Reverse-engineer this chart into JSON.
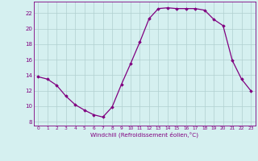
{
  "x": [
    0,
    1,
    2,
    3,
    4,
    5,
    6,
    7,
    8,
    9,
    10,
    11,
    12,
    13,
    14,
    15,
    16,
    17,
    18,
    19,
    20,
    21,
    22,
    23
  ],
  "y": [
    13.8,
    13.5,
    12.7,
    11.3,
    10.2,
    9.5,
    8.9,
    8.6,
    9.9,
    12.8,
    15.5,
    18.3,
    21.3,
    22.6,
    22.7,
    22.6,
    22.6,
    22.6,
    22.4,
    21.2,
    20.4,
    15.9,
    13.5,
    12.0
  ],
  "xlim": [
    -0.5,
    23.5
  ],
  "ylim": [
    7.5,
    23.5
  ],
  "yticks": [
    8,
    10,
    12,
    14,
    16,
    18,
    20,
    22
  ],
  "xticks": [
    0,
    1,
    2,
    3,
    4,
    5,
    6,
    7,
    8,
    9,
    10,
    11,
    12,
    13,
    14,
    15,
    16,
    17,
    18,
    19,
    20,
    21,
    22,
    23
  ],
  "xlabel": "Windchill (Refroidissement éolien,°C)",
  "line_color": "#800080",
  "marker": "D",
  "marker_size": 1.8,
  "bg_color": "#d5f0f0",
  "grid_color": "#b0d0d0",
  "label_color": "#800080",
  "tick_color": "#800080",
  "spine_color": "#800080"
}
